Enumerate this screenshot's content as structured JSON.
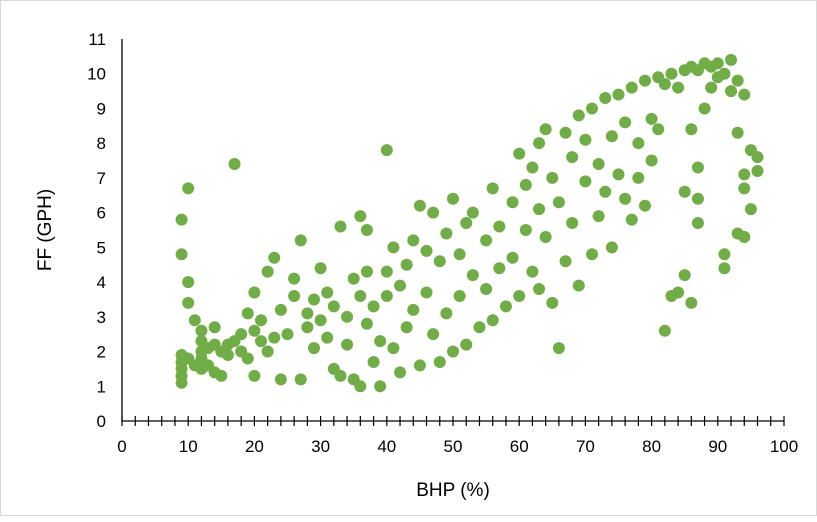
{
  "chart_data": {
    "type": "scatter",
    "title": "",
    "xlabel": "BHP (%)",
    "ylabel": "FF (GPH)",
    "xlim": [
      0,
      100
    ],
    "ylim": [
      0,
      11
    ],
    "x_ticks": [
      "0",
      "10",
      "20",
      "30",
      "40",
      "50",
      "60",
      "70",
      "80",
      "90",
      "100"
    ],
    "y_ticks": [
      "0",
      "1",
      "2",
      "3",
      "4",
      "5",
      "6",
      "7",
      "8",
      "9",
      "10",
      "11"
    ],
    "minor_x_tick_interval": 2,
    "grid": false,
    "legend": "none",
    "marker_color": "#70ad47",
    "series": [
      {
        "values": [
          [
            9,
            1.1
          ],
          [
            9,
            1.3
          ],
          [
            9,
            1.5
          ],
          [
            9,
            1.7
          ],
          [
            9,
            1.9
          ],
          [
            9,
            4.8
          ],
          [
            9,
            5.8
          ],
          [
            10,
            1.8
          ],
          [
            10,
            3.4
          ],
          [
            10,
            4.0
          ],
          [
            10,
            6.7
          ],
          [
            11,
            2.9
          ],
          [
            11,
            1.6
          ],
          [
            12,
            2.6
          ],
          [
            12,
            2.3
          ],
          [
            12,
            2.0
          ],
          [
            12,
            1.8
          ],
          [
            12,
            1.5
          ],
          [
            13,
            2.1
          ],
          [
            13,
            1.6
          ],
          [
            14,
            2.7
          ],
          [
            14,
            2.2
          ],
          [
            14,
            1.4
          ],
          [
            15,
            2.0
          ],
          [
            15,
            1.3
          ],
          [
            16,
            1.9
          ],
          [
            16,
            2.2
          ],
          [
            17,
            2.3
          ],
          [
            17,
            7.4
          ],
          [
            18,
            2.5
          ],
          [
            18,
            2.0
          ],
          [
            19,
            3.1
          ],
          [
            19,
            1.8
          ],
          [
            20,
            3.7
          ],
          [
            20,
            2.6
          ],
          [
            20,
            1.3
          ],
          [
            21,
            2.3
          ],
          [
            21,
            2.9
          ],
          [
            22,
            4.3
          ],
          [
            22,
            2.0
          ],
          [
            23,
            4.7
          ],
          [
            23,
            2.4
          ],
          [
            24,
            3.2
          ],
          [
            24,
            1.2
          ],
          [
            25,
            2.5
          ],
          [
            26,
            3.6
          ],
          [
            26,
            4.1
          ],
          [
            27,
            5.2
          ],
          [
            27,
            1.2
          ],
          [
            28,
            2.7
          ],
          [
            28,
            3.1
          ],
          [
            29,
            3.5
          ],
          [
            29,
            2.1
          ],
          [
            30,
            2.9
          ],
          [
            30,
            4.4
          ],
          [
            31,
            3.7
          ],
          [
            31,
            2.4
          ],
          [
            32,
            1.5
          ],
          [
            32,
            3.3
          ],
          [
            33,
            1.3
          ],
          [
            33,
            5.6
          ],
          [
            34,
            3.0
          ],
          [
            34,
            2.2
          ],
          [
            35,
            4.1
          ],
          [
            35,
            1.2
          ],
          [
            36,
            5.9
          ],
          [
            36,
            3.6
          ],
          [
            36,
            1.0
          ],
          [
            37,
            2.8
          ],
          [
            37,
            4.3
          ],
          [
            37,
            5.5
          ],
          [
            38,
            1.7
          ],
          [
            38,
            3.3
          ],
          [
            39,
            1.0
          ],
          [
            39,
            2.3
          ],
          [
            40,
            4.3
          ],
          [
            40,
            7.8
          ],
          [
            40,
            3.6
          ],
          [
            41,
            5.0
          ],
          [
            41,
            2.1
          ],
          [
            42,
            3.9
          ],
          [
            42,
            1.4
          ],
          [
            43,
            4.5
          ],
          [
            43,
            2.7
          ],
          [
            44,
            3.2
          ],
          [
            44,
            5.2
          ],
          [
            45,
            6.2
          ],
          [
            45,
            1.6
          ],
          [
            46,
            3.7
          ],
          [
            46,
            4.9
          ],
          [
            47,
            2.5
          ],
          [
            47,
            6.0
          ],
          [
            48,
            4.6
          ],
          [
            48,
            1.7
          ],
          [
            49,
            5.4
          ],
          [
            49,
            3.1
          ],
          [
            50,
            6.4
          ],
          [
            50,
            2.0
          ],
          [
            51,
            4.8
          ],
          [
            51,
            3.6
          ],
          [
            52,
            5.7
          ],
          [
            52,
            2.2
          ],
          [
            53,
            4.2
          ],
          [
            53,
            6.0
          ],
          [
            54,
            2.7
          ],
          [
            55,
            5.2
          ],
          [
            55,
            3.8
          ],
          [
            56,
            6.7
          ],
          [
            56,
            2.9
          ],
          [
            57,
            4.4
          ],
          [
            57,
            5.6
          ],
          [
            58,
            3.3
          ],
          [
            59,
            6.3
          ],
          [
            59,
            4.7
          ],
          [
            60,
            7.7
          ],
          [
            60,
            3.6
          ],
          [
            61,
            5.5
          ],
          [
            61,
            6.8
          ],
          [
            62,
            7.3
          ],
          [
            62,
            4.3
          ],
          [
            63,
            8.0
          ],
          [
            63,
            6.1
          ],
          [
            63,
            3.8
          ],
          [
            64,
            8.4
          ],
          [
            64,
            5.3
          ],
          [
            65,
            7.0
          ],
          [
            65,
            3.4
          ],
          [
            66,
            2.1
          ],
          [
            66,
            6.3
          ],
          [
            67,
            8.3
          ],
          [
            67,
            4.6
          ],
          [
            68,
            5.7
          ],
          [
            68,
            7.6
          ],
          [
            69,
            8.8
          ],
          [
            69,
            3.9
          ],
          [
            70,
            6.9
          ],
          [
            70,
            8.1
          ],
          [
            71,
            4.8
          ],
          [
            71,
            9.0
          ],
          [
            72,
            7.4
          ],
          [
            72,
            5.9
          ],
          [
            73,
            9.3
          ],
          [
            73,
            6.6
          ],
          [
            74,
            8.2
          ],
          [
            74,
            5.0
          ],
          [
            75,
            9.4
          ],
          [
            75,
            7.1
          ],
          [
            76,
            8.6
          ],
          [
            76,
            6.4
          ],
          [
            77,
            5.8
          ],
          [
            77,
            9.6
          ],
          [
            78,
            8.0
          ],
          [
            78,
            7.0
          ],
          [
            79,
            9.8
          ],
          [
            79,
            6.2
          ],
          [
            80,
            8.7
          ],
          [
            80,
            7.5
          ],
          [
            81,
            9.9
          ],
          [
            81,
            8.4
          ],
          [
            82,
            2.6
          ],
          [
            82,
            9.7
          ],
          [
            83,
            3.6
          ],
          [
            83,
            10.0
          ],
          [
            84,
            3.7
          ],
          [
            84,
            9.6
          ],
          [
            85,
            4.2
          ],
          [
            85,
            6.6
          ],
          [
            85,
            10.1
          ],
          [
            86,
            3.4
          ],
          [
            86,
            8.4
          ],
          [
            86,
            10.2
          ],
          [
            87,
            5.7
          ],
          [
            87,
            7.3
          ],
          [
            87,
            6.4
          ],
          [
            87,
            10.1
          ],
          [
            88,
            9.0
          ],
          [
            88,
            10.3
          ],
          [
            89,
            9.6
          ],
          [
            89,
            10.2
          ],
          [
            90,
            9.9
          ],
          [
            90,
            10.3
          ],
          [
            91,
            4.4
          ],
          [
            91,
            4.8
          ],
          [
            91,
            10.0
          ],
          [
            92,
            9.5
          ],
          [
            92,
            10.4
          ],
          [
            93,
            5.4
          ],
          [
            93,
            8.3
          ],
          [
            93,
            9.8
          ],
          [
            94,
            5.3
          ],
          [
            94,
            6.7
          ],
          [
            94,
            7.1
          ],
          [
            94,
            9.4
          ],
          [
            95,
            6.1
          ],
          [
            95,
            7.8
          ],
          [
            96,
            7.2
          ],
          [
            96,
            7.6
          ]
        ]
      }
    ]
  }
}
